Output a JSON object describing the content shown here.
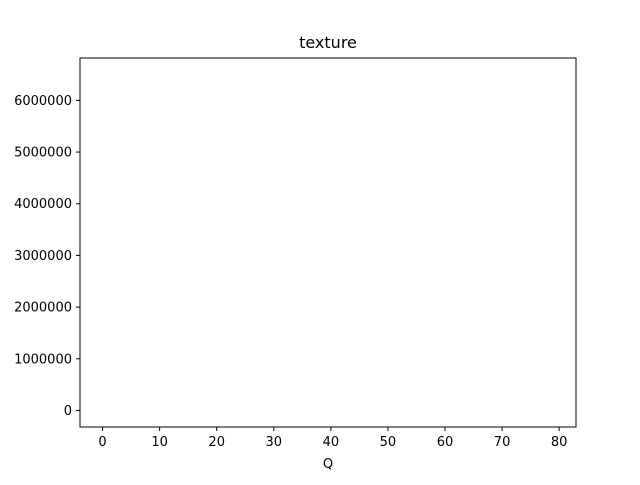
{
  "chart_data": {
    "type": "line",
    "title": "texture",
    "xlabel": "Q",
    "ylabel": "",
    "xlim": [
      -3.95,
      82.95
    ],
    "ylim": [
      -320000,
      6820000
    ],
    "xticks": [
      0,
      10,
      20,
      30,
      40,
      50,
      60,
      70,
      80
    ],
    "yticks": [
      0,
      1000000,
      2000000,
      3000000,
      4000000,
      5000000,
      6000000
    ],
    "grid": false,
    "legend": "none",
    "series": []
  },
  "colors": {
    "axes": "#000000",
    "background": "#ffffff"
  }
}
